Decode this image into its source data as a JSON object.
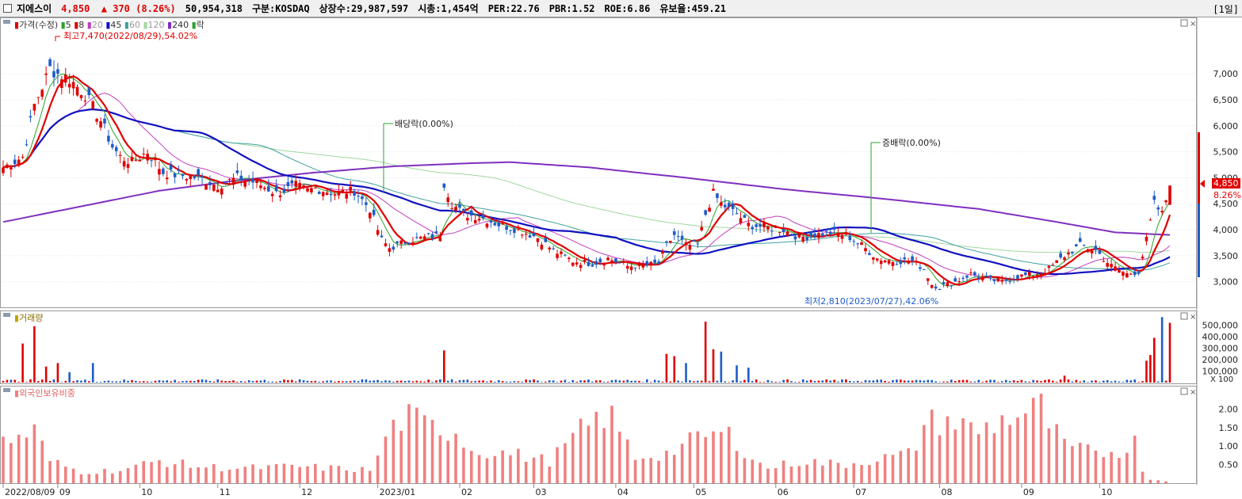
{
  "header": {
    "name": "지에스이",
    "price": "4,850",
    "change_arrow": "▲",
    "change": "370",
    "change_pct": "(8.26%)",
    "volume": "50,954,318",
    "market": "구분:KOSDAQ",
    "shares": "상장수:29,987,597",
    "market_cap": "시총:1,454억",
    "per": "PER:22.76",
    "pbr": "PBR:1.52",
    "roe": "ROE:6.86",
    "reserve": "유보율:459.21",
    "period": "[1일]"
  },
  "colors": {
    "up": "#e00000",
    "down": "#1e5cc8",
    "ma5": "#2ca02c",
    "ma8": "#e00000",
    "ma20": "#c040c0",
    "ma45": "#1010c0",
    "ma60": "#40a0a0",
    "ma120": "#a0d8a0",
    "ma240": "#7f2fbf",
    "foreign": "#f08080"
  },
  "chart_data": [
    {
      "type": "line",
      "panel": "price",
      "legend": [
        "가격(수정)",
        "5",
        "8",
        "20",
        "45",
        "60",
        "120",
        "240",
        "락"
      ],
      "annotations": {
        "high": "최고7,470(2022/08/29),54.02%",
        "low": "최저2,810(2023/07/27),42.06%",
        "dividend": "배당락(0.00%)",
        "bonus": "증배락(0.00%)"
      },
      "last_price_label": "4,850",
      "last_change_label": "8.26%",
      "y_ticks": [
        3000,
        3500,
        4000,
        4500,
        5000,
        5500,
        6000,
        6500,
        7000
      ],
      "y_tick_labels": [
        "3,000",
        "3,500",
        "4,000",
        "4,500",
        "5,000",
        "5,500",
        "6,000",
        "6,500",
        "7,000"
      ],
      "ylim": [
        2600,
        7900
      ],
      "x_labels": [
        "2022/08/09",
        "09",
        "10",
        "11",
        "12",
        "2023/01",
        "02",
        "03",
        "04",
        "05",
        "06",
        "07",
        "08",
        "09",
        "10"
      ],
      "x_label_index": [
        0,
        14,
        35,
        55,
        76,
        96,
        117,
        136,
        157,
        177,
        198,
        218,
        240,
        261,
        281
      ],
      "n_bars": 300,
      "keypoints": [
        [
          0,
          5200
        ],
        [
          5,
          5400
        ],
        [
          8,
          6400
        ],
        [
          12,
          7100
        ],
        [
          14,
          7000
        ],
        [
          17,
          6900
        ],
        [
          21,
          6600
        ],
        [
          25,
          6100
        ],
        [
          28,
          5600
        ],
        [
          30,
          5400
        ],
        [
          33,
          5300
        ],
        [
          37,
          5500
        ],
        [
          41,
          5100
        ],
        [
          45,
          5050
        ],
        [
          50,
          5000
        ],
        [
          55,
          4850
        ],
        [
          60,
          5000
        ],
        [
          65,
          4900
        ],
        [
          70,
          4700
        ],
        [
          75,
          4850
        ],
        [
          78,
          4750
        ],
        [
          80,
          4800
        ],
        [
          85,
          4700
        ],
        [
          90,
          4750
        ],
        [
          94,
          4400
        ],
        [
          97,
          3800
        ],
        [
          99,
          3650
        ],
        [
          101,
          3700
        ],
        [
          104,
          3800
        ],
        [
          108,
          3850
        ],
        [
          112,
          3900
        ],
        [
          113,
          4900
        ],
        [
          115,
          4500
        ],
        [
          118,
          4300
        ],
        [
          122,
          4250
        ],
        [
          127,
          4100
        ],
        [
          132,
          4000
        ],
        [
          137,
          3850
        ],
        [
          141,
          3600
        ],
        [
          146,
          3400
        ],
        [
          151,
          3350
        ],
        [
          155,
          3450
        ],
        [
          160,
          3300
        ],
        [
          165,
          3320
        ],
        [
          168,
          3350
        ],
        [
          170,
          3700
        ],
        [
          172,
          3900
        ],
        [
          175,
          3700
        ],
        [
          178,
          3700
        ],
        [
          180,
          4300
        ],
        [
          182,
          4700
        ],
        [
          184,
          4500
        ],
        [
          188,
          4300
        ],
        [
          191,
          4100
        ],
        [
          195,
          4050
        ],
        [
          200,
          4000
        ],
        [
          204,
          3850
        ],
        [
          208,
          3900
        ],
        [
          212,
          3950
        ],
        [
          216,
          3900
        ],
        [
          220,
          3700
        ],
        [
          224,
          3450
        ],
        [
          228,
          3400
        ],
        [
          233,
          3400
        ],
        [
          236,
          3250
        ],
        [
          238,
          2950
        ],
        [
          240,
          2900
        ],
        [
          244,
          3000
        ],
        [
          248,
          3150
        ],
        [
          252,
          3050
        ],
        [
          256,
          3000
        ],
        [
          260,
          3100
        ],
        [
          265,
          3150
        ],
        [
          268,
          3250
        ],
        [
          272,
          3500
        ],
        [
          276,
          3700
        ],
        [
          280,
          3600
        ],
        [
          284,
          3300
        ],
        [
          288,
          3150
        ],
        [
          291,
          3200
        ],
        [
          293,
          3800
        ],
        [
          295,
          4500
        ],
        [
          297,
          4300
        ],
        [
          299,
          4850
        ]
      ],
      "ma240_keypoints": [
        [
          0,
          4150
        ],
        [
          20,
          4450
        ],
        [
          40,
          4750
        ],
        [
          60,
          4950
        ],
        [
          80,
          5100
        ],
        [
          100,
          5220
        ],
        [
          120,
          5280
        ],
        [
          130,
          5300
        ],
        [
          150,
          5200
        ],
        [
          175,
          5000
        ],
        [
          200,
          4780
        ],
        [
          225,
          4600
        ],
        [
          250,
          4400
        ],
        [
          270,
          4150
        ],
        [
          285,
          3950
        ],
        [
          299,
          3900
        ]
      ]
    },
    {
      "type": "bar",
      "panel": "volume",
      "legend": "거래량",
      "y_ticks": [
        100000,
        200000,
        300000,
        400000,
        500000
      ],
      "y_tick_labels": [
        "100,000",
        "200,000",
        "300,000",
        "400,000",
        "500,000"
      ],
      "unit": "X 100",
      "ylim": [
        0,
        600000
      ],
      "spikes": [
        [
          5,
          340000
        ],
        [
          8,
          490000
        ],
        [
          11,
          140000
        ],
        [
          14,
          170000
        ],
        [
          17,
          90000
        ],
        [
          23,
          170000
        ],
        [
          113,
          280000
        ],
        [
          170,
          250000
        ],
        [
          172,
          230000
        ],
        [
          175,
          170000
        ],
        [
          180,
          530000
        ],
        [
          182,
          290000
        ],
        [
          184,
          270000
        ],
        [
          188,
          150000
        ],
        [
          191,
          130000
        ],
        [
          272,
          60000
        ],
        [
          293,
          190000
        ],
        [
          294,
          240000
        ],
        [
          295,
          390000
        ],
        [
          297,
          570000
        ],
        [
          299,
          520000
        ]
      ],
      "base_volume": 15000
    },
    {
      "type": "bar",
      "panel": "foreign",
      "legend": "외국인보유비중",
      "y_ticks": [
        0.5,
        1.0,
        1.5,
        2.0
      ],
      "y_tick_labels": [
        "0.50",
        "1.00",
        "1.50",
        "2.00"
      ],
      "ylim": [
        0,
        2.35
      ],
      "keypoints": [
        [
          0,
          1.1
        ],
        [
          8,
          1.4
        ],
        [
          12,
          0.6
        ],
        [
          20,
          0.3
        ],
        [
          30,
          0.35
        ],
        [
          40,
          0.6
        ],
        [
          50,
          0.45
        ],
        [
          60,
          0.4
        ],
        [
          75,
          0.45
        ],
        [
          85,
          0.4
        ],
        [
          95,
          0.35
        ],
        [
          98,
          1.3
        ],
        [
          103,
          1.8
        ],
        [
          110,
          1.5
        ],
        [
          116,
          1.4
        ],
        [
          120,
          0.9
        ],
        [
          130,
          0.8
        ],
        [
          140,
          0.6
        ],
        [
          148,
          1.4
        ],
        [
          155,
          1.9
        ],
        [
          162,
          0.7
        ],
        [
          170,
          0.8
        ],
        [
          180,
          1.3
        ],
        [
          186,
          1.3
        ],
        [
          195,
          0.4
        ],
        [
          205,
          0.6
        ],
        [
          215,
          0.5
        ],
        [
          233,
          0.8
        ],
        [
          236,
          1.6
        ],
        [
          242,
          1.7
        ],
        [
          250,
          1.4
        ],
        [
          258,
          1.8
        ],
        [
          263,
          1.9
        ],
        [
          266,
          2.05
        ],
        [
          268,
          1.6
        ],
        [
          272,
          1.0
        ],
        [
          280,
          0.8
        ],
        [
          287,
          0.9
        ],
        [
          290,
          1.1
        ],
        [
          292,
          0.4
        ],
        [
          294,
          0.1
        ],
        [
          299,
          0.05
        ]
      ]
    }
  ]
}
